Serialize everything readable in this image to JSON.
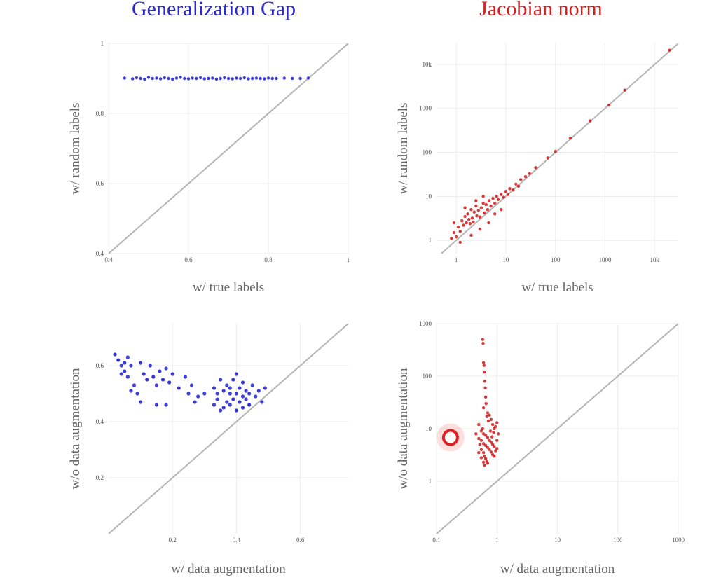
{
  "columns": [
    {
      "title": "Generalization Gap",
      "color": "#2b2bc8"
    },
    {
      "title": "Jacobian norm",
      "color": "#d42020"
    }
  ],
  "chart_data": [
    {
      "id": "gap-labels",
      "type": "scatter",
      "color": "#1a1acd",
      "xscale": "linear",
      "yscale": "linear",
      "xlim": [
        0.4,
        1
      ],
      "ylim": [
        0.4,
        1
      ],
      "xticks": [
        0.4,
        0.6,
        0.8,
        1
      ],
      "xticklabels": [
        "0.4",
        "0.6",
        "0.8",
        "1"
      ],
      "yticks": [
        0.4,
        0.6,
        0.8,
        1
      ],
      "yticklabels": [
        "0.4",
        "0.6",
        "0.8",
        "1"
      ],
      "xlabel": "w/ true labels",
      "ylabel": "w/ random labels",
      "diagonal": true,
      "grid": true,
      "points": [
        [
          0.44,
          0.901
        ],
        [
          0.46,
          0.899
        ],
        [
          0.47,
          0.902
        ],
        [
          0.48,
          0.9
        ],
        [
          0.49,
          0.898
        ],
        [
          0.5,
          0.903
        ],
        [
          0.51,
          0.9
        ],
        [
          0.52,
          0.901
        ],
        [
          0.53,
          0.899
        ],
        [
          0.54,
          0.902
        ],
        [
          0.55,
          0.9
        ],
        [
          0.56,
          0.898
        ],
        [
          0.57,
          0.901
        ],
        [
          0.58,
          0.903
        ],
        [
          0.59,
          0.9
        ],
        [
          0.6,
          0.899
        ],
        [
          0.61,
          0.901
        ],
        [
          0.62,
          0.9
        ],
        [
          0.63,
          0.902
        ],
        [
          0.64,
          0.899
        ],
        [
          0.65,
          0.9
        ],
        [
          0.66,
          0.901
        ],
        [
          0.67,
          0.898
        ],
        [
          0.68,
          0.9
        ],
        [
          0.69,
          0.902
        ],
        [
          0.7,
          0.9
        ],
        [
          0.71,
          0.899
        ],
        [
          0.72,
          0.901
        ],
        [
          0.73,
          0.9
        ],
        [
          0.74,
          0.902
        ],
        [
          0.75,
          0.899
        ],
        [
          0.76,
          0.9
        ],
        [
          0.77,
          0.901
        ],
        [
          0.78,
          0.9
        ],
        [
          0.79,
          0.899
        ],
        [
          0.8,
          0.901
        ],
        [
          0.81,
          0.9
        ],
        [
          0.82,
          0.9
        ],
        [
          0.84,
          0.901
        ],
        [
          0.86,
          0.9
        ],
        [
          0.88,
          0.9
        ],
        [
          0.9,
          0.901
        ]
      ]
    },
    {
      "id": "jac-labels",
      "type": "scatter",
      "color": "#d01818",
      "xscale": "log",
      "yscale": "log",
      "xlim": [
        0.4,
        30000
      ],
      "ylim": [
        0.5,
        30000
      ],
      "xticks": [
        1,
        10,
        100,
        1000,
        10000
      ],
      "xticklabels": [
        "1",
        "10",
        "100",
        "1000",
        "10k"
      ],
      "yticks": [
        1,
        10,
        100,
        1000,
        10000
      ],
      "yticklabels": [
        "1",
        "10",
        "100",
        "1000",
        "10k"
      ],
      "xlabel": "w/ true labels",
      "ylabel": "w/ random labels",
      "diagonal": true,
      "grid": true,
      "points": [
        [
          0.8,
          1.1
        ],
        [
          0.9,
          1.5
        ],
        [
          1.0,
          1.2
        ],
        [
          1.1,
          2.0
        ],
        [
          1.2,
          1.6
        ],
        [
          1.3,
          2.8
        ],
        [
          1.4,
          2.2
        ],
        [
          1.5,
          3.5
        ],
        [
          1.6,
          2.5
        ],
        [
          1.7,
          4.0
        ],
        [
          1.8,
          3.0
        ],
        [
          1.9,
          2.4
        ],
        [
          2.0,
          5.0
        ],
        [
          2.1,
          3.2
        ],
        [
          2.2,
          2.6
        ],
        [
          2.3,
          4.4
        ],
        [
          2.5,
          6.0
        ],
        [
          2.6,
          3.6
        ],
        [
          2.8,
          4.8
        ],
        [
          3.0,
          3.4
        ],
        [
          3.2,
          5.5
        ],
        [
          3.5,
          7.0
        ],
        [
          3.7,
          4.2
        ],
        [
          4.0,
          6.5
        ],
        [
          4.3,
          5.0
        ],
        [
          4.6,
          8.0
        ],
        [
          5.0,
          6.0
        ],
        [
          5.5,
          9.0
        ],
        [
          6.0,
          7.0
        ],
        [
          6.5,
          10
        ],
        [
          7.0,
          8.5
        ],
        [
          8.0,
          11
        ],
        [
          9.0,
          9.5
        ],
        [
          10,
          13
        ],
        [
          11,
          11
        ],
        [
          12,
          15
        ],
        [
          14,
          14
        ],
        [
          16,
          19
        ],
        [
          18,
          17
        ],
        [
          20,
          24
        ],
        [
          25,
          28
        ],
        [
          30,
          33
        ],
        [
          40,
          45
        ],
        [
          70,
          75
        ],
        [
          100,
          105
        ],
        [
          200,
          210
        ],
        [
          500,
          520
        ],
        [
          1200,
          1180
        ],
        [
          2500,
          2600
        ],
        [
          20000,
          21000
        ],
        [
          1.2,
          0.9
        ],
        [
          2.0,
          1.3
        ],
        [
          3.0,
          1.8
        ],
        [
          4.5,
          2.5
        ],
        [
          1.5,
          5.5
        ],
        [
          2.5,
          8.0
        ],
        [
          3.5,
          10
        ],
        [
          6.0,
          4.0
        ],
        [
          8.0,
          5.0
        ],
        [
          0.9,
          2.5
        ]
      ]
    },
    {
      "id": "gap-augmentation",
      "type": "scatter",
      "color": "#1a1acd",
      "xscale": "linear",
      "yscale": "linear",
      "xlim": [
        0,
        0.75
      ],
      "ylim": [
        0,
        0.75
      ],
      "xticks": [
        0.2,
        0.4,
        0.6
      ],
      "xticklabels": [
        "0.2",
        "0.4",
        "0.6"
      ],
      "yticks": [
        0.2,
        0.4,
        0.6
      ],
      "yticklabels": [
        "0.2",
        "0.4",
        "0.6"
      ],
      "xlabel": "w/ data augmentation",
      "ylabel": "w/o data augmentation",
      "diagonal": true,
      "grid": true,
      "points": [
        [
          0.02,
          0.64
        ],
        [
          0.03,
          0.62
        ],
        [
          0.04,
          0.6
        ],
        [
          0.05,
          0.58
        ],
        [
          0.06,
          0.63
        ],
        [
          0.06,
          0.56
        ],
        [
          0.07,
          0.6
        ],
        [
          0.08,
          0.53
        ],
        [
          0.09,
          0.5
        ],
        [
          0.07,
          0.51
        ],
        [
          0.04,
          0.57
        ],
        [
          0.05,
          0.61
        ],
        [
          0.1,
          0.47
        ],
        [
          0.1,
          0.61
        ],
        [
          0.11,
          0.57
        ],
        [
          0.12,
          0.55
        ],
        [
          0.13,
          0.6
        ],
        [
          0.14,
          0.56
        ],
        [
          0.15,
          0.53
        ],
        [
          0.15,
          0.46
        ],
        [
          0.16,
          0.58
        ],
        [
          0.17,
          0.55
        ],
        [
          0.18,
          0.46
        ],
        [
          0.18,
          0.59
        ],
        [
          0.19,
          0.54
        ],
        [
          0.2,
          0.57
        ],
        [
          0.22,
          0.52
        ],
        [
          0.24,
          0.56
        ],
        [
          0.25,
          0.5
        ],
        [
          0.26,
          0.53
        ],
        [
          0.27,
          0.47
        ],
        [
          0.28,
          0.49
        ],
        [
          0.3,
          0.5
        ],
        [
          0.33,
          0.52
        ],
        [
          0.33,
          0.46
        ],
        [
          0.34,
          0.48
        ],
        [
          0.35,
          0.44
        ],
        [
          0.35,
          0.55
        ],
        [
          0.36,
          0.51
        ],
        [
          0.36,
          0.45
        ],
        [
          0.37,
          0.47
        ],
        [
          0.37,
          0.53
        ],
        [
          0.38,
          0.5
        ],
        [
          0.38,
          0.46
        ],
        [
          0.39,
          0.48
        ],
        [
          0.39,
          0.55
        ],
        [
          0.4,
          0.5
        ],
        [
          0.4,
          0.44
        ],
        [
          0.41,
          0.52
        ],
        [
          0.41,
          0.47
        ],
        [
          0.42,
          0.49
        ],
        [
          0.42,
          0.45
        ],
        [
          0.43,
          0.51
        ],
        [
          0.43,
          0.48
        ],
        [
          0.44,
          0.5
        ],
        [
          0.44,
          0.46
        ],
        [
          0.45,
          0.53
        ],
        [
          0.46,
          0.49
        ],
        [
          0.47,
          0.51
        ],
        [
          0.48,
          0.47
        ],
        [
          0.49,
          0.52
        ],
        [
          0.4,
          0.57
        ],
        [
          0.38,
          0.52
        ],
        [
          0.42,
          0.54
        ],
        [
          0.34,
          0.5
        ]
      ]
    },
    {
      "id": "jac-augmentation",
      "type": "scatter",
      "color": "#d01818",
      "xscale": "log",
      "yscale": "log",
      "xlim": [
        0.1,
        1000
      ],
      "ylim": [
        0.1,
        1000
      ],
      "xticks": [
        0.1,
        1,
        10,
        100,
        1000
      ],
      "xticklabels": [
        "0.1",
        "1",
        "10",
        "100",
        "1000"
      ],
      "yticks": [
        1,
        10,
        100,
        1000
      ],
      "yticklabels": [
        "1",
        "10",
        "100",
        "1000"
      ],
      "xlabel": "w/ data augmentation",
      "ylabel": "w/o data augmentation",
      "diagonal": true,
      "grid": true,
      "highlight": [
        0.17,
        6.8
      ],
      "points": [
        [
          0.58,
          500
        ],
        [
          0.59,
          420
        ],
        [
          0.6,
          180
        ],
        [
          0.61,
          160
        ],
        [
          0.62,
          120
        ],
        [
          0.63,
          80
        ],
        [
          0.64,
          60
        ],
        [
          0.65,
          40
        ],
        [
          0.66,
          30
        ],
        [
          0.6,
          25
        ],
        [
          0.7,
          20
        ],
        [
          0.75,
          18
        ],
        [
          0.8,
          15
        ],
        [
          0.85,
          12
        ],
        [
          0.9,
          10
        ],
        [
          0.5,
          12
        ],
        [
          0.55,
          9
        ],
        [
          0.6,
          8
        ],
        [
          0.65,
          7.5
        ],
        [
          0.7,
          6.8
        ],
        [
          0.75,
          6
        ],
        [
          0.8,
          5.5
        ],
        [
          0.85,
          5
        ],
        [
          0.9,
          4.6
        ],
        [
          1.0,
          4.2
        ],
        [
          0.95,
          3.8
        ],
        [
          0.45,
          8
        ],
        [
          0.5,
          6.5
        ],
        [
          0.55,
          6
        ],
        [
          0.6,
          5.2
        ],
        [
          0.65,
          4.8
        ],
        [
          0.7,
          4.4
        ],
        [
          0.75,
          4
        ],
        [
          0.8,
          3.6
        ],
        [
          0.85,
          3.2
        ],
        [
          0.9,
          3
        ],
        [
          0.55,
          4
        ],
        [
          0.6,
          3.5
        ],
        [
          0.62,
          3.0
        ],
        [
          0.65,
          2.7
        ],
        [
          0.68,
          2.4
        ],
        [
          0.7,
          2.2
        ],
        [
          0.6,
          2.3
        ],
        [
          0.55,
          2.8
        ],
        [
          0.5,
          3.5
        ],
        [
          1.0,
          6
        ],
        [
          1.05,
          8
        ],
        [
          0.95,
          11
        ],
        [
          0.72,
          14
        ],
        [
          0.68,
          17
        ],
        [
          0.58,
          10
        ],
        [
          0.78,
          9
        ],
        [
          0.83,
          7
        ],
        [
          0.88,
          8.5
        ],
        [
          1.0,
          13
        ],
        [
          0.52,
          5
        ],
        [
          0.62,
          2.0
        ]
      ]
    }
  ]
}
